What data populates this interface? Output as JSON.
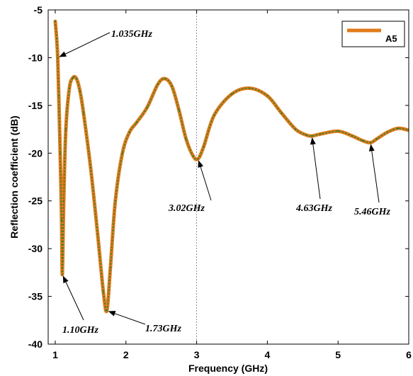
{
  "chart_data": {
    "type": "line",
    "xlabel": "Frequency (GHz)",
    "ylabel": "Reflection coefficient (dB)",
    "xlim": [
      0.9,
      6
    ],
    "ylim": [
      -40,
      -5
    ],
    "xticks": [
      "1",
      "2",
      "3",
      "4",
      "5",
      "6"
    ],
    "yticks": [
      "-5",
      "-10",
      "-15",
      "-20",
      "-25",
      "-30",
      "-35",
      "-40"
    ],
    "grid": false,
    "reference_line_x": 3,
    "legend": {
      "position": "top-right",
      "entries": [
        "A5"
      ]
    },
    "line_color": "#e07b1a",
    "marker_color": "#2e7d32",
    "series": [
      {
        "name": "A5",
        "x": [
          1.0,
          1.02,
          1.035,
          1.05,
          1.07,
          1.09,
          1.1,
          1.12,
          1.15,
          1.2,
          1.25,
          1.3,
          1.35,
          1.4,
          1.5,
          1.6,
          1.68,
          1.73,
          1.78,
          1.85,
          1.95,
          2.05,
          2.15,
          2.3,
          2.45,
          2.55,
          2.65,
          2.75,
          2.85,
          2.95,
          3.02,
          3.1,
          3.25,
          3.5,
          3.75,
          4.0,
          4.2,
          4.4,
          4.55,
          4.63,
          4.75,
          5.0,
          5.2,
          5.35,
          5.46,
          5.55,
          5.7,
          5.85,
          6.0
        ],
        "y": [
          -6.2,
          -8.0,
          -10.0,
          -14.0,
          -20.0,
          -27.0,
          -32.7,
          -25.0,
          -17.5,
          -13.2,
          -12.1,
          -12.2,
          -13.5,
          -15.8,
          -21.5,
          -28.5,
          -34.5,
          -36.5,
          -32.0,
          -25.0,
          -20.0,
          -17.8,
          -16.8,
          -15.2,
          -12.8,
          -12.2,
          -13.0,
          -15.5,
          -18.5,
          -20.3,
          -20.6,
          -19.3,
          -16.0,
          -13.8,
          -13.2,
          -14.0,
          -15.8,
          -17.5,
          -18.1,
          -18.2,
          -18.0,
          -17.7,
          -18.2,
          -18.7,
          -18.9,
          -18.5,
          -17.8,
          -17.4,
          -17.6
        ]
      }
    ],
    "annotations": [
      {
        "text": "1.035GHz",
        "x": 1.035,
        "y": -10.0
      },
      {
        "text": "1.10GHz",
        "x": 1.1,
        "y": -32.7
      },
      {
        "text": "1.73GHz",
        "x": 1.73,
        "y": -36.5
      },
      {
        "text": "3.02GHz",
        "x": 3.02,
        "y": -20.6
      },
      {
        "text": "4.63GHz",
        "x": 4.63,
        "y": -18.2
      },
      {
        "text": "5.46GHz",
        "x": 5.46,
        "y": -18.9
      }
    ]
  }
}
